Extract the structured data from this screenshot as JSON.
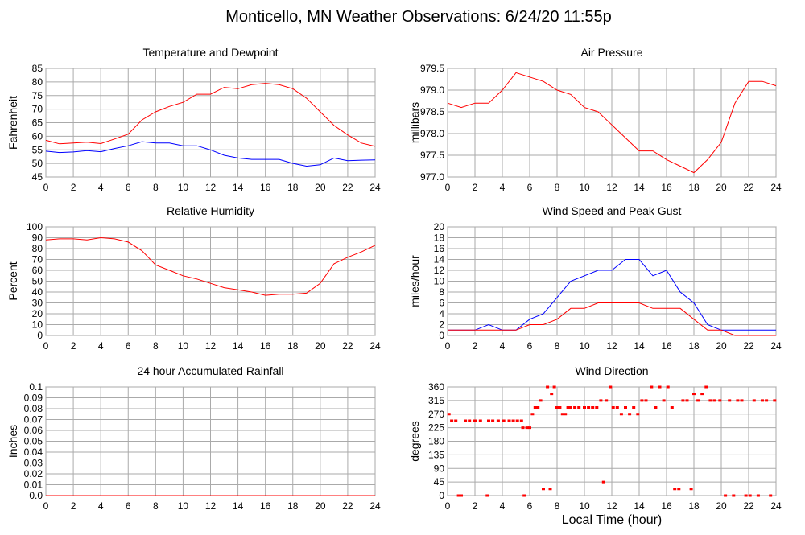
{
  "title": "Monticello, MN Weather Observations: 6/24/20 11:55p",
  "x_ticks": [
    "0",
    "2",
    "4",
    "6",
    "8",
    "10",
    "12",
    "14",
    "16",
    "18",
    "20",
    "22",
    "24"
  ],
  "xlabel": "Local Time (hour)",
  "chart_data": [
    {
      "id": "temp",
      "type": "line",
      "title": "Temperature and Dewpoint",
      "ylabel": "Fahrenheit",
      "xlim": [
        0,
        24
      ],
      "ylim": [
        45,
        85
      ],
      "y_ticks": [
        "45",
        "50",
        "55",
        "60",
        "65",
        "70",
        "75",
        "80",
        "85"
      ],
      "grid": true,
      "series": [
        {
          "name": "Temperature",
          "color": "#ff0000",
          "x": [
            0,
            1,
            2,
            3,
            4,
            5,
            6,
            7,
            8,
            9,
            10,
            11,
            12,
            13,
            14,
            15,
            16,
            17,
            18,
            19,
            20,
            21,
            22,
            23,
            24
          ],
          "values": [
            58.5,
            57.2,
            57.5,
            57.8,
            57.3,
            59,
            60.8,
            66,
            69,
            71,
            72.5,
            75.5,
            75.5,
            78,
            77.5,
            79,
            79.5,
            79,
            77.5,
            74,
            69,
            64,
            60.5,
            57.5,
            56.3
          ]
        },
        {
          "name": "Dewpoint",
          "color": "#0000ff",
          "x": [
            0,
            1,
            2,
            3,
            4,
            5,
            6,
            7,
            8,
            9,
            10,
            11,
            12,
            13,
            14,
            15,
            16,
            17,
            18,
            19,
            20,
            21,
            22,
            23,
            24
          ],
          "values": [
            54.5,
            54,
            54.2,
            54.7,
            54.3,
            55.5,
            56.5,
            58,
            57.5,
            57.5,
            56.5,
            56.5,
            55,
            53,
            52,
            51.5,
            51.5,
            51.5,
            50,
            49,
            49.5,
            52,
            51,
            51.2,
            51.3
          ]
        }
      ]
    },
    {
      "id": "pressure",
      "type": "line",
      "title": "Air Pressure",
      "ylabel": "millibars",
      "xlim": [
        0,
        24
      ],
      "ylim": [
        977.0,
        979.5
      ],
      "y_ticks": [
        "977.0",
        "977.5",
        "978.0",
        "978.5",
        "979.0",
        "979.5"
      ],
      "grid": true,
      "series": [
        {
          "name": "Pressure",
          "color": "#ff0000",
          "x": [
            0,
            1,
            2,
            3,
            4,
            5,
            6,
            7,
            8,
            9,
            10,
            11,
            12,
            13,
            14,
            15,
            16,
            17,
            18,
            19,
            20,
            21,
            22,
            23,
            24
          ],
          "values": [
            978.7,
            978.6,
            978.7,
            978.7,
            979.0,
            979.4,
            979.3,
            979.2,
            979.0,
            978.9,
            978.6,
            978.5,
            978.2,
            977.9,
            977.6,
            977.6,
            977.4,
            977.25,
            977.1,
            977.4,
            977.8,
            978.7,
            979.2,
            979.2,
            979.1
          ]
        }
      ]
    },
    {
      "id": "rh",
      "type": "line",
      "title": "Relative Humidity",
      "ylabel": "Percent",
      "xlim": [
        0,
        24
      ],
      "ylim": [
        0,
        100
      ],
      "y_ticks": [
        "0",
        "10",
        "20",
        "30",
        "40",
        "50",
        "60",
        "70",
        "80",
        "90",
        "100"
      ],
      "grid": true,
      "series": [
        {
          "name": "Relative Humidity",
          "color": "#ff0000",
          "x": [
            0,
            1,
            2,
            3,
            4,
            5,
            6,
            7,
            8,
            9,
            10,
            11,
            12,
            13,
            14,
            15,
            16,
            17,
            18,
            19,
            20,
            21,
            22,
            23,
            24
          ],
          "values": [
            88,
            89,
            89,
            88,
            90,
            89,
            86,
            78,
            65,
            60,
            55,
            52,
            48,
            44,
            42,
            40,
            37,
            38,
            38,
            39,
            48,
            66,
            72,
            77,
            83
          ]
        }
      ]
    },
    {
      "id": "wind",
      "type": "line",
      "title": "Wind Speed and Peak Gust",
      "ylabel": "miles/hour",
      "xlim": [
        0,
        24
      ],
      "ylim": [
        0,
        20
      ],
      "y_ticks": [
        "0",
        "2",
        "4",
        "6",
        "8",
        "10",
        "12",
        "14",
        "16",
        "18",
        "20"
      ],
      "grid": true,
      "series": [
        {
          "name": "Peak Gust",
          "color": "#0000ff",
          "x": [
            0,
            1,
            2,
            3,
            4,
            5,
            6,
            7,
            8,
            9,
            10,
            11,
            12,
            13,
            14,
            15,
            16,
            17,
            18,
            19,
            20,
            21,
            22,
            23,
            24
          ],
          "values": [
            1,
            1,
            1,
            2,
            1,
            1,
            3,
            4,
            7,
            10,
            11,
            12,
            12,
            14,
            14,
            11,
            12,
            8,
            6,
            2,
            1,
            1,
            1,
            1,
            1
          ]
        },
        {
          "name": "Wind Speed",
          "color": "#ff0000",
          "x": [
            0,
            1,
            2,
            3,
            4,
            5,
            6,
            7,
            8,
            9,
            10,
            11,
            12,
            13,
            14,
            15,
            16,
            17,
            18,
            19,
            20,
            21,
            22,
            23,
            24
          ],
          "values": [
            1,
            1,
            1,
            1,
            1,
            1,
            2,
            2,
            3,
            5,
            5,
            6,
            6,
            6,
            6,
            5,
            5,
            5,
            3,
            1,
            1,
            0,
            0,
            0,
            0
          ]
        }
      ]
    },
    {
      "id": "rain",
      "type": "line",
      "title": "24 hour Accumulated Rainfall",
      "ylabel": "Inches",
      "xlim": [
        0,
        24
      ],
      "ylim": [
        0,
        0.1
      ],
      "y_ticks": [
        "0.0",
        "0.01",
        "0.02",
        "0.03",
        "0.04",
        "0.05",
        "0.06",
        "0.07",
        "0.08",
        "0.09",
        "0.1"
      ],
      "grid": true,
      "series": [
        {
          "name": "Rainfall",
          "color": "#ff0000",
          "x": [
            0,
            24
          ],
          "values": [
            0,
            0
          ]
        }
      ]
    },
    {
      "id": "dir",
      "type": "scatter",
      "title": "Wind Direction",
      "ylabel": "degrees",
      "xlim": [
        0,
        24
      ],
      "ylim": [
        0,
        360
      ],
      "y_ticks": [
        "0",
        "45",
        "90",
        "135",
        "180",
        "225",
        "270",
        "315",
        "360"
      ],
      "grid": true,
      "series": [
        {
          "name": "Wind Direction",
          "color": "#ff0000",
          "x": [
            0.1,
            0.3,
            0.6,
            0.8,
            1.0,
            1.3,
            1.6,
            2.0,
            2.4,
            2.9,
            3.0,
            3.3,
            3.7,
            4.1,
            4.5,
            4.8,
            5.1,
            5.4,
            5.5,
            5.6,
            5.8,
            6.0,
            6.2,
            6.4,
            6.6,
            6.8,
            7.0,
            7.3,
            7.5,
            7.6,
            7.8,
            8.0,
            8.2,
            8.4,
            8.6,
            8.8,
            9.0,
            9.3,
            9.6,
            10.0,
            10.3,
            10.6,
            10.9,
            11.2,
            11.4,
            11.6,
            11.9,
            12.1,
            12.4,
            12.7,
            13.0,
            13.3,
            13.6,
            13.9,
            14.2,
            14.5,
            14.9,
            15.2,
            15.5,
            15.8,
            16.1,
            16.4,
            16.6,
            16.9,
            17.2,
            17.5,
            17.8,
            18.0,
            18.3,
            18.6,
            18.9,
            19.2,
            19.5,
            19.9,
            20.3,
            20.6,
            20.9,
            21.2,
            21.5,
            21.8,
            22.1,
            22.4,
            22.7,
            23.0,
            23.3,
            23.6,
            23.9
          ],
          "values": [
            270,
            248,
            248,
            0,
            0,
            248,
            248,
            248,
            248,
            0,
            248,
            248,
            248,
            248,
            248,
            248,
            248,
            248,
            225,
            0,
            225,
            225,
            270,
            292,
            292,
            315,
            22,
            360,
            22,
            337,
            360,
            292,
            292,
            270,
            270,
            292,
            292,
            292,
            292,
            292,
            292,
            292,
            292,
            315,
            45,
            315,
            360,
            292,
            292,
            270,
            292,
            270,
            292,
            270,
            315,
            315,
            360,
            292,
            360,
            315,
            360,
            292,
            22,
            22,
            315,
            315,
            22,
            337,
            315,
            337,
            360,
            315,
            315,
            315,
            0,
            315,
            0,
            315,
            315,
            0,
            0,
            315,
            0,
            315,
            315,
            0,
            315
          ]
        }
      ]
    }
  ]
}
